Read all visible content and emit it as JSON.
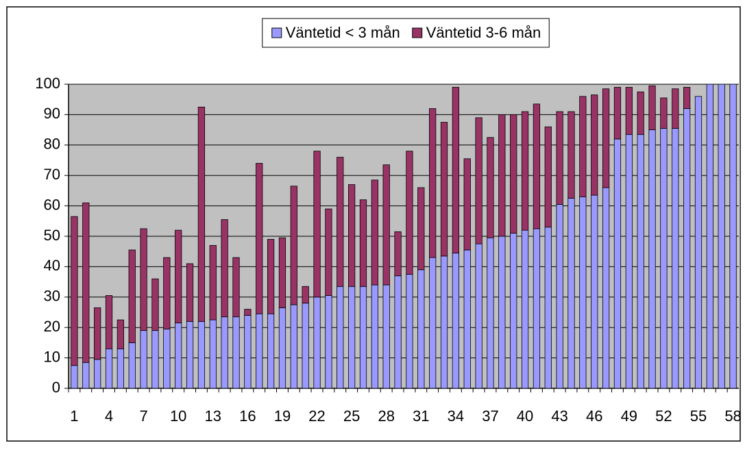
{
  "chart_data": {
    "type": "stacked_bar",
    "categories": [
      "1",
      null,
      null,
      "4",
      null,
      null,
      "7",
      null,
      null,
      "10",
      null,
      null,
      "13",
      null,
      null,
      "16",
      null,
      null,
      "19",
      null,
      null,
      "22",
      null,
      null,
      "25",
      null,
      null,
      "28",
      null,
      null,
      "31",
      null,
      null,
      "34",
      null,
      null,
      "37",
      null,
      null,
      "40",
      null,
      null,
      "43",
      null,
      null,
      "46",
      null,
      null,
      "49",
      null,
      null,
      "52",
      null,
      null,
      "55",
      null,
      null,
      "58"
    ],
    "series": [
      {
        "name": "Väntetid < 3 mån",
        "color": "#9999ff",
        "values": [
          7.5,
          8.5,
          9.5,
          13,
          13,
          15,
          19,
          19,
          19.5,
          21.5,
          22,
          22,
          22.5,
          23.5,
          23.5,
          24,
          24.5,
          24.5,
          26.5,
          27.5,
          28,
          30,
          30.5,
          33.5,
          33.5,
          33.5,
          34,
          34,
          37,
          37.5,
          39,
          43,
          43.5,
          44.5,
          45.5,
          47.5,
          49.5,
          50,
          51,
          52,
          52.5,
          53,
          60.5,
          62.5,
          63,
          63.5,
          66,
          82,
          83.5,
          83.5,
          85,
          85.5,
          85.5,
          92,
          96,
          100,
          100,
          100
        ]
      },
      {
        "name": "Väntetid 3-6 mån",
        "color": "#993366",
        "values": [
          49,
          52.5,
          17,
          17.5,
          9.5,
          30.5,
          33.5,
          17,
          23.5,
          30.5,
          19,
          70.5,
          24.5,
          32,
          19.5,
          2,
          49.5,
          24.5,
          23,
          39,
          5.5,
          48,
          28.5,
          42.5,
          33.5,
          28.5,
          34.5,
          39.5,
          14.5,
          40.5,
          27,
          49,
          44,
          54.5,
          30,
          41.5,
          33,
          40,
          39,
          39,
          41,
          33,
          30.5,
          28.5,
          33,
          33,
          32.5,
          17,
          15.5,
          14,
          14.5,
          10,
          13,
          7,
          0,
          0,
          0,
          0
        ]
      }
    ],
    "ylim": [
      0,
      100
    ],
    "yticks": [
      0,
      10,
      20,
      30,
      40,
      50,
      60,
      70,
      80,
      90,
      100
    ],
    "grid": true,
    "plot_background": "#c0c0c0",
    "legend": "top"
  }
}
